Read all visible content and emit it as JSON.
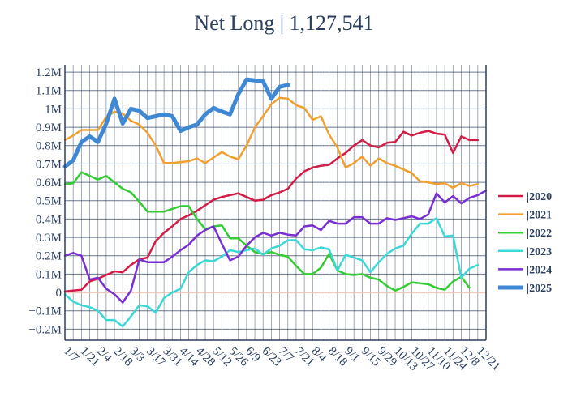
{
  "chart_data": {
    "type": "line",
    "title": "Net Long | 1,127,541",
    "xlabel": "",
    "ylabel": "",
    "ylim": [
      -260000,
      1240000
    ],
    "y_ticks": [
      -200000,
      -100000,
      0,
      100000,
      200000,
      300000,
      400000,
      500000,
      600000,
      700000,
      800000,
      900000,
      1000000,
      1100000,
      1200000
    ],
    "y_tick_labels": [
      "−0.2M",
      "−0.1M",
      "0",
      "0.1M",
      "0.2M",
      "0.3M",
      "0.4M",
      "0.5M",
      "0.6M",
      "0.7M",
      "0.8M",
      "0.9M",
      "1M",
      "1.1M",
      "1.2M"
    ],
    "x_tick_labels": [
      "1/7",
      "1/21",
      "2/4",
      "2/18",
      "3/3",
      "3/17",
      "3/31",
      "4/14",
      "4/28",
      "5/12",
      "5/26",
      "6/9",
      "6/23",
      "7/7",
      "7/21",
      "8/4",
      "8/18",
      "9/1",
      "9/15",
      "9/29",
      "10/13",
      "10/27",
      "11/10",
      "11/24",
      "12/8",
      "12/21"
    ],
    "grid": true,
    "legend_position": "right",
    "series": [
      {
        "name": "|2020",
        "color": "#d21c46",
        "values": [
          5000,
          10000,
          15000,
          60000,
          75000,
          95000,
          115000,
          110000,
          150000,
          180000,
          190000,
          280000,
          325000,
          360000,
          400000,
          420000,
          445000,
          475000,
          505000,
          520000,
          530000,
          540000,
          520000,
          500000,
          505000,
          530000,
          545000,
          565000,
          620000,
          660000,
          680000,
          690000,
          695000,
          730000,
          760000,
          800000,
          830000,
          800000,
          790000,
          815000,
          820000,
          875000,
          855000,
          870000,
          880000,
          865000,
          860000,
          760000,
          850000,
          830000,
          830000
        ]
      },
      {
        "name": "|2021",
        "color": "#f0a030",
        "values": [
          830000,
          855000,
          885000,
          885000,
          885000,
          955000,
          985000,
          975000,
          935000,
          915000,
          870000,
          800000,
          705000,
          705000,
          710000,
          715000,
          730000,
          705000,
          735000,
          765000,
          740000,
          725000,
          800000,
          900000,
          960000,
          1025000,
          1060000,
          1055000,
          1020000,
          1005000,
          940000,
          960000,
          860000,
          790000,
          680000,
          705000,
          740000,
          690000,
          730000,
          705000,
          690000,
          670000,
          650000,
          605000,
          600000,
          590000,
          595000,
          570000,
          595000,
          580000,
          590000
        ]
      },
      {
        "name": "|2022",
        "color": "#33cc33",
        "values": [
          590000,
          595000,
          655000,
          635000,
          615000,
          635000,
          600000,
          565000,
          545000,
          495000,
          440000,
          440000,
          440000,
          455000,
          470000,
          470000,
          400000,
          345000,
          360000,
          365000,
          295000,
          295000,
          255000,
          220000,
          210000,
          220000,
          205000,
          195000,
          145000,
          100000,
          100000,
          135000,
          210000,
          120000,
          100000,
          95000,
          100000,
          80000,
          70000,
          35000,
          10000,
          30000,
          55000,
          50000,
          45000,
          25000,
          15000,
          60000,
          85000,
          25000
        ]
      },
      {
        "name": "|2023",
        "color": "#3cd8d8",
        "values": [
          -10000,
          -50000,
          -70000,
          -80000,
          -100000,
          -150000,
          -150000,
          -185000,
          -130000,
          -70000,
          -75000,
          -110000,
          -30000,
          0,
          20000,
          110000,
          150000,
          175000,
          170000,
          195000,
          230000,
          220000,
          230000,
          240000,
          205000,
          240000,
          255000,
          285000,
          285000,
          235000,
          230000,
          245000,
          235000,
          120000,
          205000,
          190000,
          175000,
          110000,
          165000,
          210000,
          240000,
          255000,
          320000,
          375000,
          375000,
          405000,
          305000,
          310000,
          80000,
          130000,
          150000
        ]
      },
      {
        "name": "|2024",
        "color": "#7a2fd0",
        "values": [
          200000,
          215000,
          200000,
          70000,
          80000,
          20000,
          -10000,
          -55000,
          10000,
          180000,
          165000,
          165000,
          165000,
          195000,
          230000,
          260000,
          310000,
          340000,
          360000,
          265000,
          175000,
          195000,
          255000,
          300000,
          325000,
          310000,
          325000,
          315000,
          310000,
          360000,
          365000,
          340000,
          390000,
          375000,
          375000,
          410000,
          410000,
          375000,
          375000,
          405000,
          395000,
          405000,
          415000,
          400000,
          425000,
          540000,
          490000,
          525000,
          485000,
          515000,
          530000,
          555000
        ]
      },
      {
        "name": "|2025",
        "color": "#3f88d4",
        "values": [
          685000,
          720000,
          820000,
          850000,
          820000,
          920000,
          1055000,
          920000,
          1000000,
          990000,
          950000,
          960000,
          970000,
          960000,
          880000,
          900000,
          915000,
          970000,
          1005000,
          985000,
          970000,
          1080000,
          1160000,
          1155000,
          1150000,
          1055000,
          1120000,
          1130000
        ]
      }
    ]
  }
}
